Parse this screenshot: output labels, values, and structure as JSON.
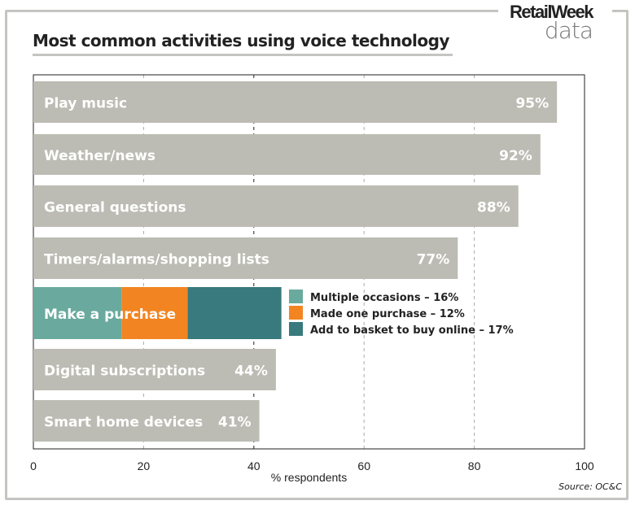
{
  "logo": {
    "brand": "RetailWeek",
    "sub": "data"
  },
  "source": "Source: OC&C",
  "chart_data": {
    "type": "bar",
    "orientation": "horizontal",
    "title": "Most common activities using voice technology",
    "xlabel": "% respondents",
    "xlim": [
      0,
      100
    ],
    "xticks": [
      0,
      20,
      40,
      60,
      80,
      100
    ],
    "categories": [
      "Play music",
      "Weather/news",
      "General questions",
      "Timers/alarms/shopping lists",
      "Make a purchase",
      "Digital subscriptions",
      "Smart home devices"
    ],
    "values": [
      95,
      92,
      88,
      77,
      45,
      44,
      41
    ],
    "value_labels": [
      "95%",
      "92%",
      "88%",
      "77%",
      "",
      "44%",
      "41%"
    ],
    "stacked": {
      "category": "Make a purchase",
      "segments": [
        {
          "name": "Multiple occasions – 16%",
          "value": 16,
          "color": "#6aaa9e"
        },
        {
          "name": "Made one purchase – 12%",
          "value": 12,
          "color": "#f28522"
        },
        {
          "name": "Add to basket to buy online – 17%",
          "value": 17,
          "color": "#387a7d"
        }
      ]
    },
    "bar_color": "#bcbcb4"
  }
}
